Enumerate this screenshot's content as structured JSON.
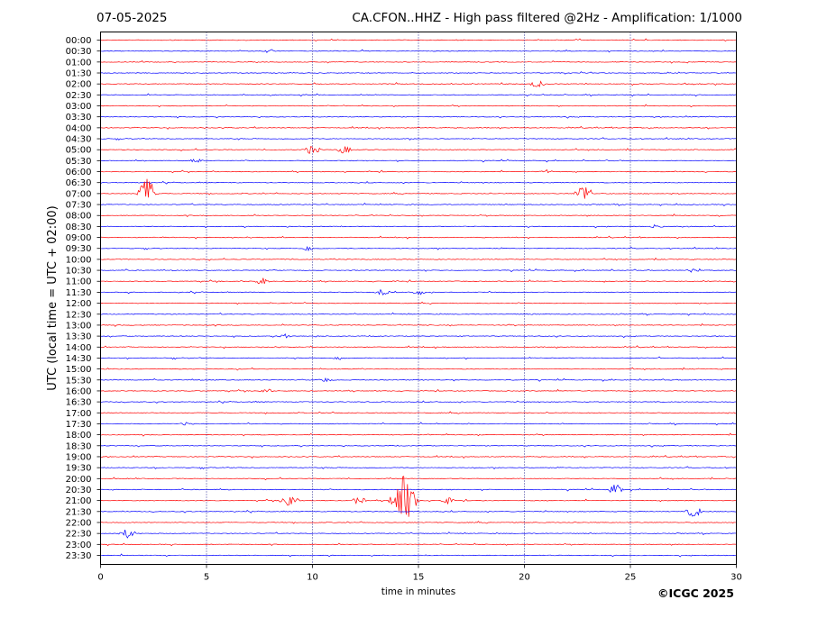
{
  "date_label": "07-05-2025",
  "title": "CA.CFON..HHZ - High pass filtered @2Hz - Amplification: 1/1000",
  "credit": "©ICGC 2025",
  "chart_data": {
    "type": "line",
    "title": "CA.CFON..HHZ - High pass filtered @2Hz - Amplification: 1/1000",
    "xlabel": "time in minutes",
    "ylabel": "UTC (local time = UTC + 02:00)",
    "xlim": [
      0,
      30
    ],
    "xticks": [
      0,
      5,
      10,
      15,
      20,
      25,
      30
    ],
    "x_gridlines": [
      5,
      10,
      15,
      20,
      25
    ],
    "grid": "vertical dotted",
    "trace_labels": [
      "00:00",
      "00:30",
      "01:00",
      "01:30",
      "02:00",
      "02:30",
      "03:00",
      "03:30",
      "04:00",
      "04:30",
      "05:00",
      "05:30",
      "06:00",
      "06:30",
      "07:00",
      "07:30",
      "08:00",
      "08:30",
      "09:00",
      "09:30",
      "10:00",
      "10:30",
      "11:00",
      "11:30",
      "12:00",
      "12:30",
      "13:00",
      "13:30",
      "14:00",
      "14:30",
      "15:00",
      "15:30",
      "16:00",
      "16:30",
      "17:00",
      "17:30",
      "18:00",
      "18:30",
      "19:00",
      "19:30",
      "20:00",
      "20:30",
      "21:00",
      "21:30",
      "22:00",
      "22:30",
      "23:00",
      "23:30"
    ],
    "colors": {
      "on_the_hour": "#ff0000",
      "half_hour": "#0000ff"
    },
    "events": [
      {
        "trace": "07:00",
        "x": 2.2,
        "amp": 0.6
      },
      {
        "trace": "07:00",
        "x": 22.8,
        "amp": 0.4
      },
      {
        "trace": "05:00",
        "x": 10.0,
        "amp": 0.2
      },
      {
        "trace": "05:00",
        "x": 11.5,
        "amp": 0.15
      },
      {
        "trace": "02:00",
        "x": 20.6,
        "amp": 0.15
      },
      {
        "trace": "21:00",
        "x": 8.9,
        "amp": 0.35
      },
      {
        "trace": "21:00",
        "x": 14.3,
        "amp": 1.0
      },
      {
        "trace": "21:00",
        "x": 12.2,
        "amp": 0.15
      },
      {
        "trace": "21:00",
        "x": 16.3,
        "amp": 0.15
      },
      {
        "trace": "21:30",
        "x": 28.0,
        "amp": 0.25
      },
      {
        "trace": "20:30",
        "x": 24.3,
        "amp": 0.2
      },
      {
        "trace": "22:30",
        "x": 1.3,
        "amp": 0.2
      },
      {
        "trace": "11:30",
        "x": 13.3,
        "amp": 0.12
      },
      {
        "trace": "11:30",
        "x": 15.0,
        "amp": 0.1
      },
      {
        "trace": "11:00",
        "x": 7.6,
        "amp": 0.15
      },
      {
        "trace": "10:30",
        "x": 28.0,
        "amp": 0.12
      },
      {
        "trace": "09:30",
        "x": 9.8,
        "amp": 0.1
      },
      {
        "trace": "13:30",
        "x": 8.7,
        "amp": 0.1
      },
      {
        "trace": "16:00",
        "x": 7.8,
        "amp": 0.1
      },
      {
        "trace": "00:30",
        "x": 8.0,
        "amp": 0.08
      },
      {
        "trace": "05:30",
        "x": 4.5,
        "amp": 0.08
      },
      {
        "trace": "06:00",
        "x": 21.0,
        "amp": 0.08
      },
      {
        "trace": "08:30",
        "x": 26.2,
        "amp": 0.08
      },
      {
        "trace": "14:30",
        "x": 11.3,
        "amp": 0.08
      },
      {
        "trace": "15:30",
        "x": 10.6,
        "amp": 0.08
      },
      {
        "trace": "17:30",
        "x": 4.1,
        "amp": 0.07
      }
    ]
  }
}
